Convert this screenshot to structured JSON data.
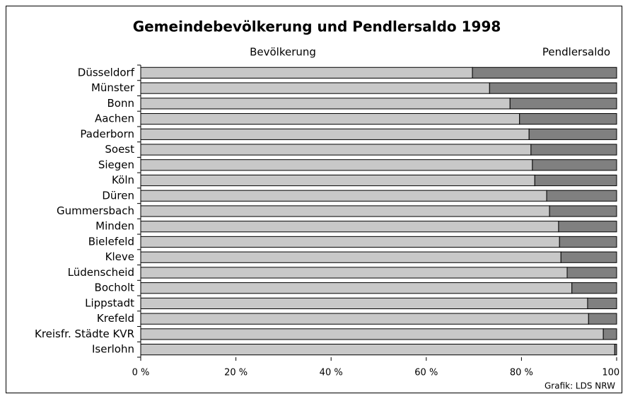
{
  "chart_data": {
    "type": "stacked_bar_100",
    "title": "Gemeindebevölkerung und Pendlersaldo 1998",
    "source": "Grafik: LDS NRW",
    "categories": [
      "Düsseldorf",
      "Münster",
      "Bonn",
      "Aachen",
      "Paderborn",
      "Soest",
      "Siegen",
      "Köln",
      "Düren",
      "Gummersbach",
      "Minden",
      "Bielefeld",
      "Kleve",
      "Lüdenscheid",
      "Bocholt",
      "Lippstadt",
      "Krefeld",
      "Kreisfr. Städte KVR",
      "Iserlohn"
    ],
    "series": [
      {
        "name": "Bevölkerung",
        "color": "#c8c8c8",
        "values": [
          69.7,
          73.3,
          77.6,
          79.6,
          81.6,
          82.0,
          82.3,
          82.8,
          85.3,
          85.9,
          87.8,
          88.0,
          88.3,
          89.6,
          90.6,
          93.9,
          94.1,
          97.2,
          99.6
        ]
      },
      {
        "name": "Pendlersaldo",
        "color": "#808080",
        "values": [
          30.3,
          26.7,
          22.4,
          20.4,
          18.4,
          18.0,
          17.7,
          17.2,
          14.7,
          14.1,
          12.2,
          12.0,
          11.7,
          10.4,
          9.4,
          6.1,
          5.9,
          2.8,
          0.4
        ]
      }
    ],
    "xlim": [
      0,
      100
    ],
    "xticks": [
      {
        "value": 0,
        "label": "0 %"
      },
      {
        "value": 20,
        "label": "20 %"
      },
      {
        "value": 40,
        "label": "40 %"
      },
      {
        "value": 60,
        "label": "60 %"
      },
      {
        "value": 80,
        "label": "80 %"
      },
      {
        "value": 100,
        "label": "100 %"
      }
    ]
  }
}
